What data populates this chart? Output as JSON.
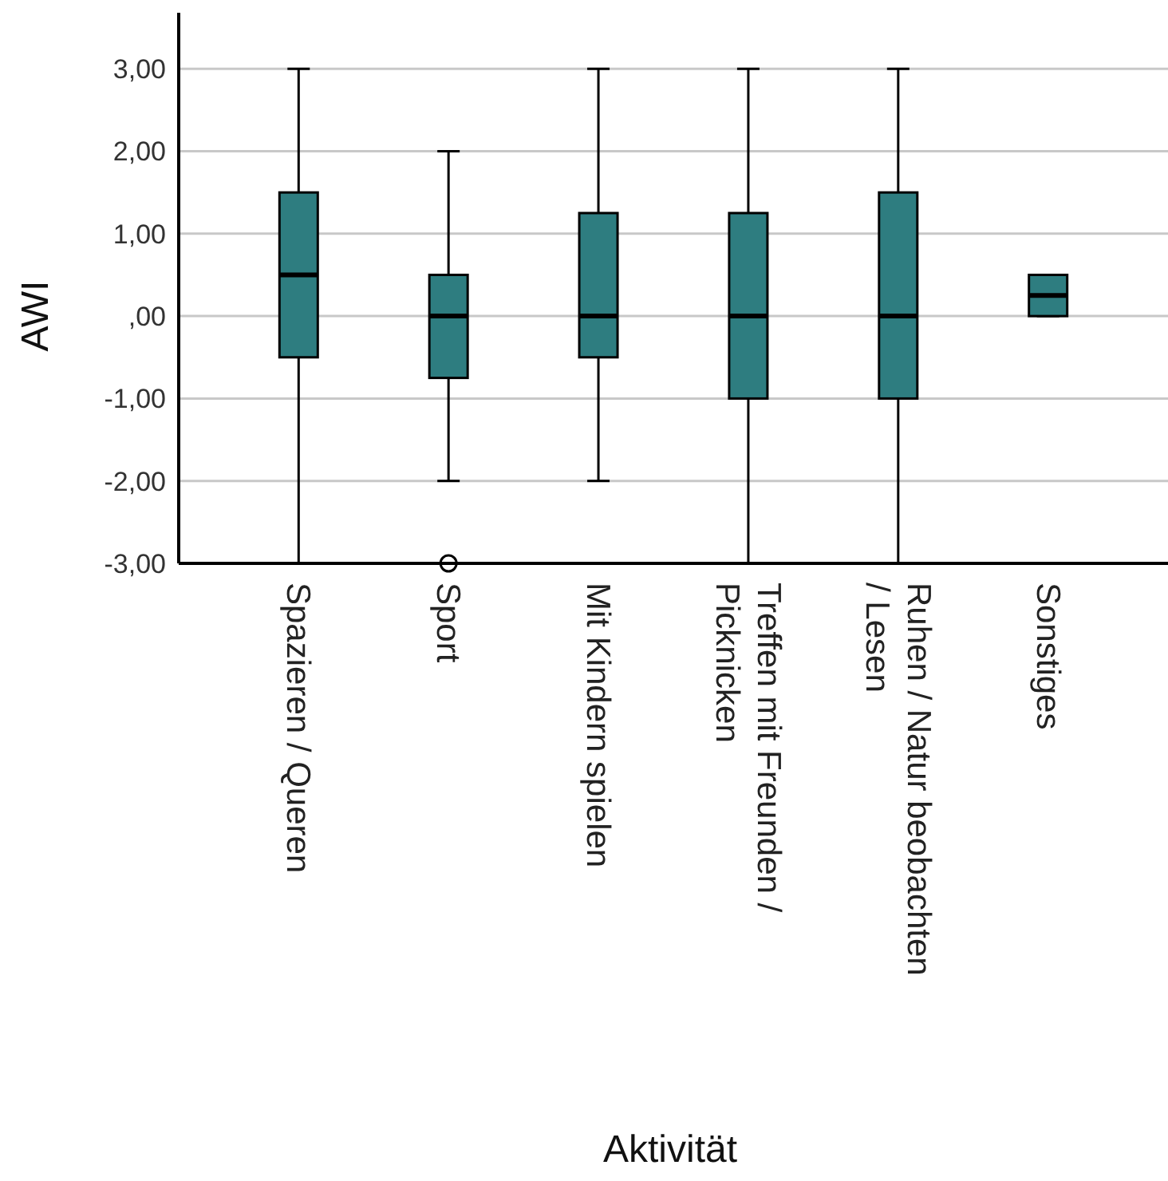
{
  "chart_data": {
    "type": "box",
    "xlabel": "Aktivität",
    "ylabel": "AWI",
    "categories": [
      "Spazieren / Queren",
      "Sport",
      "Mit Kindern spielen",
      "Treffen mit Freunden / Picknicken",
      "Ruhen / Natur beobachten / Lesen",
      "Sonstiges"
    ],
    "color": "#2e7d80",
    "boxes": [
      {
        "low": -3,
        "q1": -0.5,
        "median": 0.5,
        "q3": 1.5,
        "high": 3
      },
      {
        "low": -2,
        "q1": -0.75,
        "median": 0,
        "q3": 0.5,
        "high": 2,
        "outliers": [
          -3
        ]
      },
      {
        "low": -2,
        "q1": -0.5,
        "median": 0,
        "q3": 1.25,
        "high": 3
      },
      {
        "low": -3,
        "q1": -1,
        "median": 0,
        "q3": 1.25,
        "high": 3
      },
      {
        "low": -3,
        "q1": -1,
        "median": 0,
        "q3": 1.5,
        "high": 3
      },
      {
        "low": 0,
        "q1": 0,
        "median": 0.25,
        "q3": 0.5,
        "high": 0.5
      }
    ],
    "ylim": [
      -3,
      3.68
    ],
    "yticks": [
      {
        "value": -3,
        "label": "-3,00"
      },
      {
        "value": -2,
        "label": "-2,00"
      },
      {
        "value": -1,
        "label": "-1,00"
      },
      {
        "value": 0,
        "label": ",00"
      },
      {
        "value": 1,
        "label": "1,00"
      },
      {
        "value": 2,
        "label": "2,00"
      },
      {
        "value": 3,
        "label": "3,00"
      }
    ],
    "grid": "y"
  }
}
